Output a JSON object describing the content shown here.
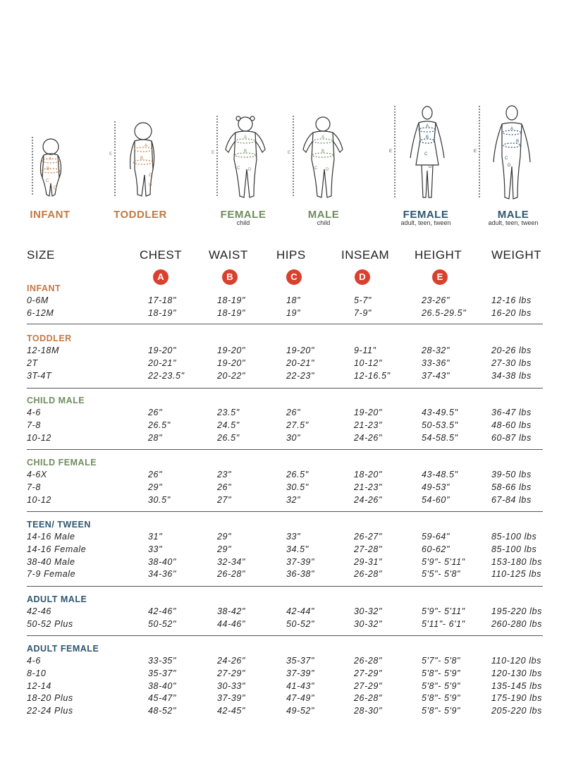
{
  "figures": [
    {
      "label": "INFANT",
      "sub": "",
      "color": "#c07a45"
    },
    {
      "label": "TODDLER",
      "sub": "",
      "color": "#c07a45"
    },
    {
      "label": "FEMALE",
      "sub": "child",
      "color": "#6f8c5e"
    },
    {
      "label": "MALE",
      "sub": "child",
      "color": "#6f8c5e"
    },
    {
      "label": "FEMALE",
      "sub": "adult, teen, tween",
      "color": "#2d5670"
    },
    {
      "label": "MALE",
      "sub": "adult, teen, tween",
      "color": "#2d5670"
    }
  ],
  "figure_marks": {
    "a": "A",
    "b": "B",
    "c": "C",
    "d": "D",
    "e": "E"
  },
  "header": {
    "size": "SIZE",
    "chest": "CHEST",
    "waist": "WAIST",
    "hips": "HIPS",
    "inseam": "INSEAM",
    "height": "HEIGHT",
    "weight": "WEIGHT",
    "badges": [
      "A",
      "B",
      "C",
      "D",
      "E"
    ],
    "badge_color": "#d9412e"
  },
  "sections": [
    {
      "title": "INFANT",
      "color": "#c07a45",
      "rows": [
        [
          "0-6M",
          "17-18\"",
          "18-19\"",
          "18\"",
          "5-7\"",
          "23-26\"",
          "12-16 lbs"
        ],
        [
          "6-12M",
          "18-19\"",
          "18-19\"",
          "19\"",
          "7-9\"",
          "26.5-29.5\"",
          "16-20 lbs"
        ]
      ]
    },
    {
      "title": "TODDLER",
      "color": "#c07a45",
      "rows": [
        [
          "12-18M",
          "19-20\"",
          "19-20\"",
          "19-20\"",
          "9-11\"",
          "28-32\"",
          "20-26 lbs"
        ],
        [
          "2T",
          "20-21\"",
          "19-20\"",
          "20-21\"",
          "10-12\"",
          "33-36\"",
          "27-30 lbs"
        ],
        [
          "3T-4T",
          "22-23.5\"",
          "20-22\"",
          "22-23\"",
          "12-16.5\"",
          "37-43\"",
          "34-38 lbs"
        ]
      ]
    },
    {
      "title": "CHILD MALE",
      "color": "#6f8c5e",
      "rows": [
        [
          "4-6",
          "26\"",
          "23.5\"",
          "26\"",
          "19-20\"",
          "43-49.5\"",
          "36-47 lbs"
        ],
        [
          "7-8",
          "26.5\"",
          "24.5\"",
          "27.5\"",
          "21-23\"",
          "50-53.5\"",
          "48-60 lbs"
        ],
        [
          "10-12",
          "28\"",
          "26.5\"",
          "30\"",
          "24-26\"",
          "54-58.5\"",
          "60-87 lbs"
        ]
      ]
    },
    {
      "title": "CHILD FEMALE",
      "color": "#6f8c5e",
      "rows": [
        [
          "4-6X",
          "26\"",
          "23\"",
          "26.5\"",
          "18-20\"",
          "43-48.5\"",
          "39-50 lbs"
        ],
        [
          "7-8",
          "29\"",
          "26\"",
          "30.5\"",
          "21-23\"",
          "49-53\"",
          "58-66 lbs"
        ],
        [
          "10-12",
          "30.5\"",
          "27\"",
          "32\"",
          "24-26\"",
          "54-60\"",
          "67-84 lbs"
        ]
      ]
    },
    {
      "title": "TEEN/ TWEEN",
      "color": "#2d5670",
      "rows": [
        [
          "14-16 Male",
          "31\"",
          "29\"",
          "33\"",
          "26-27\"",
          "59-64\"",
          "85-100 lbs"
        ],
        [
          "14-16 Female",
          "33\"",
          "29\"",
          "34.5\"",
          "27-28\"",
          "60-62\"",
          "85-100 lbs"
        ],
        [
          "38-40 Male",
          "38-40\"",
          "32-34\"",
          "37-39\"",
          "29-31\"",
          "5'9\"- 5'11\"",
          "153-180 lbs"
        ],
        [
          "7-9 Female",
          "34-36\"",
          "26-28\"",
          "36-38\"",
          "26-28\"",
          "5'5\"- 5'8\"",
          "110-125 lbs"
        ]
      ]
    },
    {
      "title": "ADULT MALE",
      "color": "#2d5670",
      "rows": [
        [
          "42-46",
          "42-46\"",
          "38-42\"",
          "42-44\"",
          "30-32\"",
          "5'9\"- 5'11\"",
          "195-220 lbs"
        ],
        [
          "50-52 Plus",
          "50-52\"",
          "44-46\"",
          "50-52\"",
          "30-32\"",
          "5'11\"- 6'1\"",
          "260-280 lbs"
        ]
      ]
    },
    {
      "title": "ADULT FEMALE",
      "color": "#2d5670",
      "rows": [
        [
          "4-6",
          "33-35\"",
          "24-26\"",
          "35-37\"",
          "26-28\"",
          "5'7\"- 5'8\"",
          "110-120 lbs"
        ],
        [
          "8-10",
          "35-37\"",
          "27-29\"",
          "37-39\"",
          "27-29\"",
          "5'8\"- 5'9\"",
          "120-130 lbs"
        ],
        [
          "12-14",
          "38-40\"",
          "30-33\"",
          "41-43\"",
          "27-29\"",
          "5'8\"- 5'9\"",
          "135-145 lbs"
        ],
        [
          "18-20 Plus",
          "45-47\"",
          "37-39\"",
          "47-49\"",
          "26-28\"",
          "5'8\"- 5'9\"",
          "175-190 lbs"
        ],
        [
          "22-24 Plus",
          "48-52\"",
          "42-45\"",
          "49-52\"",
          "28-30\"",
          "5'8\"- 5'9\"",
          "205-220 lbs"
        ]
      ]
    }
  ]
}
